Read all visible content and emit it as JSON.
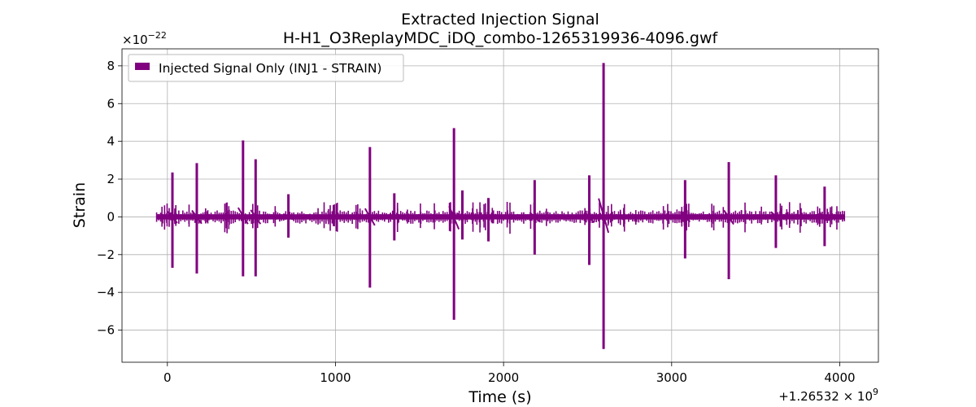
{
  "chart_data": {
    "type": "line",
    "title_line1": "Extracted Injection Signal",
    "title_line2": "H-H1_O3ReplayMDC_iDQ_combo-1265319936-4096.gwf",
    "xlabel": "Time (s)",
    "ylabel": "Strain",
    "y_multiplier": "×10",
    "y_multiplier_exp": "−22",
    "x_offset": "+1.26532 × 10",
    "x_offset_exp": "9",
    "xlim": [
      -270,
      4230
    ],
    "ylim": [
      -7.7,
      8.9
    ],
    "xticks": [
      0,
      1000,
      2000,
      3000,
      4000
    ],
    "xtick_labels": [
      "0",
      "1000",
      "2000",
      "3000",
      "4000"
    ],
    "yticks": [
      -6,
      -4,
      -2,
      0,
      2,
      4,
      6,
      8
    ],
    "ytick_labels": [
      "−6",
      "−4",
      "−2",
      "0",
      "2",
      "4",
      "6",
      "8"
    ],
    "grid": true,
    "legend_position": "top-left",
    "color": "#800080",
    "series": [
      {
        "name": "Injected Signal Only (INJ1 - STRAIN)",
        "baseline_range": [
          -64,
          4030
        ],
        "baseline_amplitude": 0.25,
        "spikes": [
          {
            "x": 30,
            "max": 2.35,
            "min": -2.7
          },
          {
            "x": 175,
            "max": 2.85,
            "min": -3.0
          },
          {
            "x": 450,
            "max": 4.05,
            "min": -3.15
          },
          {
            "x": 525,
            "max": 3.05,
            "min": -3.15
          },
          {
            "x": 720,
            "max": 1.2,
            "min": -1.1
          },
          {
            "x": 1205,
            "max": 3.7,
            "min": -3.75
          },
          {
            "x": 1350,
            "max": 1.25,
            "min": -1.25
          },
          {
            "x": 1705,
            "max": 4.7,
            "min": -5.45
          },
          {
            "x": 1755,
            "max": 1.4,
            "min": -1.2
          },
          {
            "x": 1910,
            "max": 1.0,
            "min": -1.3
          },
          {
            "x": 2185,
            "max": 1.95,
            "min": -2.0
          },
          {
            "x": 2510,
            "max": 2.2,
            "min": -2.55
          },
          {
            "x": 2595,
            "max": 8.15,
            "min": -7.0
          },
          {
            "x": 3080,
            "max": 1.95,
            "min": -2.2
          },
          {
            "x": 3340,
            "max": 2.9,
            "min": -3.3
          },
          {
            "x": 3620,
            "max": 2.2,
            "min": -1.65
          },
          {
            "x": 3910,
            "max": 1.6,
            "min": -1.55
          }
        ]
      }
    ]
  }
}
